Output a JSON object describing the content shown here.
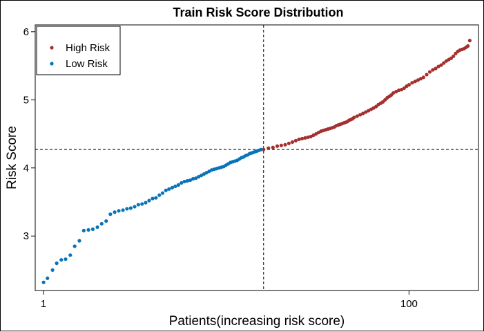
{
  "chart_data": {
    "type": "scatter",
    "title": "Train Risk Score Distribution",
    "xlabel": "Patients(increasing risk score)",
    "ylabel": "Risk Score",
    "x_scale": "log",
    "xlim": [
      0.9,
      240
    ],
    "ylim": [
      2.2,
      6.1
    ],
    "x_ticks": [
      1,
      100
    ],
    "y_ticks": [
      3,
      4,
      5,
      6
    ],
    "grid": false,
    "legend_position": "top-left",
    "cutoff_x": 16,
    "cutoff_y": 4.27,
    "series": [
      {
        "name": "High Risk",
        "color": "#a3302e",
        "x": [
          16,
          17,
          18,
          19,
          20,
          21,
          22,
          23,
          24,
          25,
          26,
          27,
          28,
          29,
          30,
          31,
          32,
          33,
          34,
          35,
          36,
          37,
          38,
          39,
          40,
          41,
          42,
          43,
          44,
          45,
          46,
          47,
          48,
          49,
          50,
          52,
          54,
          56,
          58,
          60,
          62,
          64,
          66,
          68,
          70,
          72,
          74,
          76,
          78,
          80,
          82,
          85,
          88,
          91,
          94,
          97,
          100,
          104,
          108,
          112,
          116,
          120,
          125,
          130,
          135,
          140,
          145,
          150,
          155,
          160,
          165,
          170,
          175,
          180,
          185,
          190,
          195,
          200,
          205,
          210,
          215
        ],
        "y": [
          4.27,
          4.29,
          4.3,
          4.32,
          4.33,
          4.34,
          4.36,
          4.38,
          4.4,
          4.42,
          4.43,
          4.44,
          4.45,
          4.46,
          4.48,
          4.5,
          4.52,
          4.54,
          4.55,
          4.56,
          4.57,
          4.58,
          4.59,
          4.6,
          4.62,
          4.63,
          4.64,
          4.65,
          4.66,
          4.67,
          4.68,
          4.7,
          4.71,
          4.72,
          4.74,
          4.76,
          4.78,
          4.8,
          4.82,
          4.84,
          4.86,
          4.88,
          4.9,
          4.93,
          4.95,
          4.97,
          5.0,
          5.03,
          5.05,
          5.07,
          5.1,
          5.12,
          5.14,
          5.15,
          5.17,
          5.2,
          5.22,
          5.25,
          5.27,
          5.29,
          5.31,
          5.33,
          5.37,
          5.41,
          5.44,
          5.46,
          5.49,
          5.51,
          5.54,
          5.57,
          5.59,
          5.61,
          5.64,
          5.68,
          5.71,
          5.73,
          5.74,
          5.75,
          5.77,
          5.79,
          5.87
        ]
      },
      {
        "name": "Low Risk",
        "color": "#0873b8",
        "x": [
          1,
          1.05,
          1.12,
          1.18,
          1.25,
          1.32,
          1.4,
          1.48,
          1.57,
          1.66,
          1.76,
          1.86,
          1.97,
          2.08,
          2.2,
          2.32,
          2.45,
          2.58,
          2.72,
          2.86,
          3.0,
          3.15,
          3.3,
          3.46,
          3.62,
          3.78,
          3.95,
          4.12,
          4.3,
          4.48,
          4.67,
          4.86,
          5.06,
          5.26,
          5.47,
          5.68,
          5.9,
          6.12,
          6.35,
          6.58,
          6.82,
          7.06,
          7.3,
          7.55,
          7.8,
          8.06,
          8.32,
          8.58,
          8.85,
          9.12,
          9.4,
          9.68,
          9.96,
          10.25,
          10.55,
          10.85,
          11.15,
          11.46,
          11.78,
          12.1,
          12.42,
          12.75,
          13.08,
          13.42,
          13.76,
          14.1,
          14.45,
          14.8,
          15.15,
          15.5
        ],
        "y": [
          2.32,
          2.38,
          2.5,
          2.6,
          2.65,
          2.66,
          2.72,
          2.85,
          2.93,
          3.08,
          3.09,
          3.1,
          3.13,
          3.18,
          3.22,
          3.32,
          3.35,
          3.37,
          3.38,
          3.4,
          3.41,
          3.43,
          3.46,
          3.47,
          3.49,
          3.52,
          3.55,
          3.56,
          3.6,
          3.63,
          3.67,
          3.69,
          3.71,
          3.73,
          3.75,
          3.78,
          3.8,
          3.81,
          3.82,
          3.84,
          3.85,
          3.87,
          3.89,
          3.91,
          3.93,
          3.95,
          3.97,
          3.98,
          3.99,
          4.0,
          4.01,
          4.02,
          4.04,
          4.06,
          4.08,
          4.09,
          4.1,
          4.11,
          4.13,
          4.15,
          4.16,
          4.18,
          4.19,
          4.21,
          4.22,
          4.23,
          4.24,
          4.25,
          4.26,
          4.27
        ]
      }
    ]
  }
}
